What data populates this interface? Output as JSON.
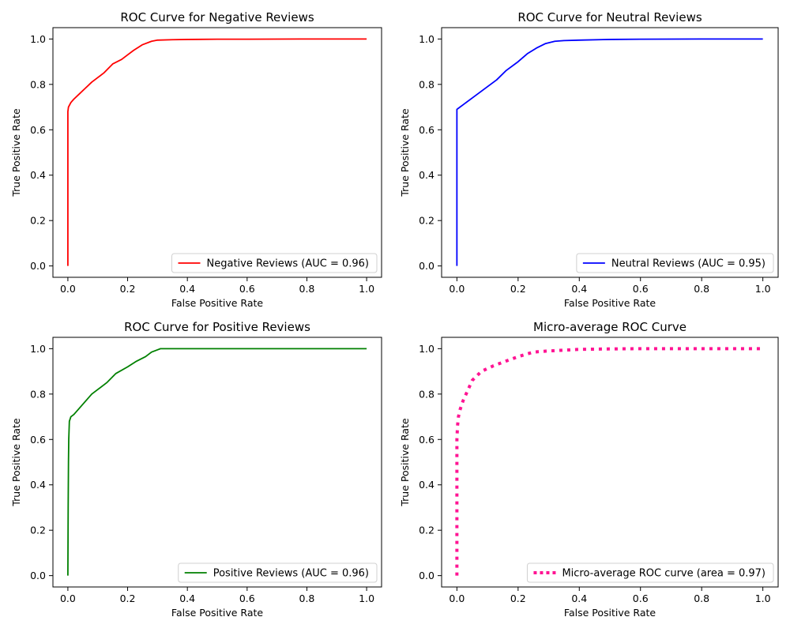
{
  "chart_data": [
    {
      "type": "line",
      "title": "ROC Curve for Negative Reviews",
      "xlabel": "False Positive Rate",
      "ylabel": "True Positive Rate",
      "xlim": [
        -0.05,
        1.05
      ],
      "ylim": [
        -0.05,
        1.05
      ],
      "xticks": [
        "0.0",
        "0.2",
        "0.4",
        "0.6",
        "0.8",
        "1.0"
      ],
      "yticks": [
        "0.0",
        "0.2",
        "0.4",
        "0.6",
        "0.8",
        "1.0"
      ],
      "grid": false,
      "legend_position": "lower-right",
      "series": [
        {
          "name": "Negative Reviews (AUC = 0.96)",
          "color": "#ff0000",
          "style": "solid",
          "x": [
            0,
            0,
            0.002,
            0.01,
            0.02,
            0.04,
            0.06,
            0.08,
            0.1,
            0.12,
            0.15,
            0.18,
            0.2,
            0.22,
            0.25,
            0.28,
            0.3,
            0.35,
            0.4,
            0.5,
            0.6,
            0.8,
            1.0
          ],
          "y": [
            0,
            0.68,
            0.7,
            0.72,
            0.735,
            0.76,
            0.785,
            0.81,
            0.83,
            0.85,
            0.89,
            0.91,
            0.93,
            0.95,
            0.975,
            0.99,
            0.995,
            0.997,
            0.998,
            0.999,
            0.999,
            1.0,
            1.0
          ]
        }
      ]
    },
    {
      "type": "line",
      "title": "ROC Curve for Neutral Reviews",
      "xlabel": "False Positive Rate",
      "ylabel": "True Positive Rate",
      "xlim": [
        -0.05,
        1.05
      ],
      "ylim": [
        -0.05,
        1.05
      ],
      "xticks": [
        "0.0",
        "0.2",
        "0.4",
        "0.6",
        "0.8",
        "1.0"
      ],
      "yticks": [
        "0.0",
        "0.2",
        "0.4",
        "0.6",
        "0.8",
        "1.0"
      ],
      "grid": false,
      "legend_position": "lower-right",
      "series": [
        {
          "name": "Neutral Reviews (AUC = 0.95)",
          "color": "#0000ff",
          "style": "solid",
          "x": [
            0,
            0,
            0.005,
            0.02,
            0.05,
            0.08,
            0.1,
            0.13,
            0.16,
            0.2,
            0.23,
            0.26,
            0.29,
            0.32,
            0.35,
            0.4,
            0.5,
            0.6,
            0.8,
            1.0
          ],
          "y": [
            0,
            0.69,
            0.695,
            0.71,
            0.74,
            0.77,
            0.79,
            0.82,
            0.86,
            0.9,
            0.935,
            0.96,
            0.98,
            0.99,
            0.993,
            0.995,
            0.998,
            0.999,
            1.0,
            1.0
          ]
        }
      ]
    },
    {
      "type": "line",
      "title": "ROC Curve for Positive Reviews",
      "xlabel": "False Positive Rate",
      "ylabel": "True Positive Rate",
      "xlim": [
        -0.05,
        1.05
      ],
      "ylim": [
        -0.05,
        1.05
      ],
      "xticks": [
        "0.0",
        "0.2",
        "0.4",
        "0.6",
        "0.8",
        "1.0"
      ],
      "yticks": [
        "0.0",
        "0.2",
        "0.4",
        "0.6",
        "0.8",
        "1.0"
      ],
      "grid": false,
      "legend_position": "lower-right",
      "series": [
        {
          "name": "Positive Reviews (AUC = 0.96)",
          "color": "#008000",
          "style": "solid",
          "x": [
            0,
            0.001,
            0.002,
            0.003,
            0.005,
            0.01,
            0.02,
            0.04,
            0.06,
            0.08,
            0.1,
            0.13,
            0.16,
            0.2,
            0.23,
            0.26,
            0.28,
            0.3,
            0.31,
            0.35,
            0.5,
            0.7,
            1.0
          ],
          "y": [
            0,
            0.3,
            0.5,
            0.6,
            0.68,
            0.7,
            0.71,
            0.74,
            0.77,
            0.8,
            0.82,
            0.85,
            0.89,
            0.92,
            0.945,
            0.965,
            0.985,
            0.995,
            1.0,
            1.0,
            1.0,
            1.0,
            1.0
          ]
        }
      ]
    },
    {
      "type": "line",
      "title": "Micro-average ROC Curve",
      "xlabel": "False Positive Rate",
      "ylabel": "True Positive Rate",
      "xlim": [
        -0.05,
        1.05
      ],
      "ylim": [
        -0.05,
        1.05
      ],
      "xticks": [
        "0.0",
        "0.2",
        "0.4",
        "0.6",
        "0.8",
        "1.0"
      ],
      "yticks": [
        "0.0",
        "0.2",
        "0.4",
        "0.6",
        "0.8",
        "1.0"
      ],
      "grid": false,
      "legend_position": "lower-right",
      "series": [
        {
          "name": "Micro-average ROC curve (area = 0.97)",
          "color": "#ff1493",
          "style": "dotted",
          "x": [
            0,
            0,
            0.002,
            0.005,
            0.01,
            0.02,
            0.03,
            0.05,
            0.08,
            0.12,
            0.16,
            0.2,
            0.25,
            0.3,
            0.4,
            0.5,
            0.6,
            0.8,
            1.0
          ],
          "y": [
            0,
            0.6,
            0.66,
            0.7,
            0.73,
            0.77,
            0.8,
            0.86,
            0.9,
            0.925,
            0.945,
            0.965,
            0.985,
            0.99,
            0.997,
            0.999,
            1.0,
            1.0,
            1.0
          ]
        }
      ]
    }
  ]
}
